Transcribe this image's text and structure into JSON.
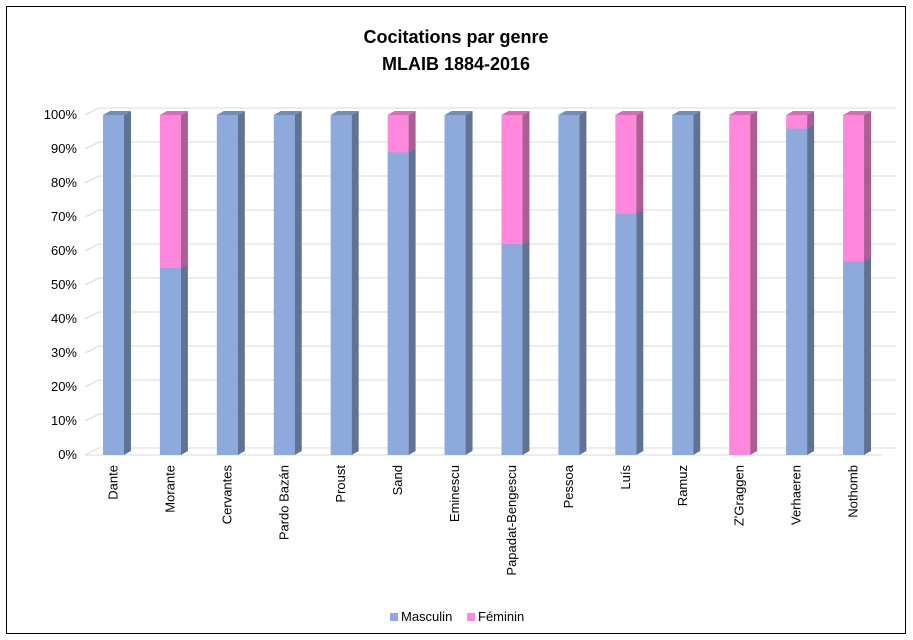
{
  "chart_data": {
    "type": "bar",
    "stacked": true,
    "percent": true,
    "three_d": true,
    "title": "Cocitations par genre",
    "subtitle": "MLAIB 1884-2016",
    "categories": [
      "Dante",
      "Morante",
      "Cervantes",
      "Pardo Bazán",
      "Proust",
      "Sand",
      "Eminescu",
      "Papadat-Bengescu",
      "Pessoa",
      "Luís",
      "Ramuz",
      "Z'Graggen",
      "Verhaeren",
      "Nothomb"
    ],
    "series": [
      {
        "name": "Masculin",
        "color": "#8EA9DB",
        "values": [
          100,
          55,
          100,
          100,
          100,
          89,
          100,
          62,
          100,
          71,
          100,
          0,
          96,
          57
        ]
      },
      {
        "name": "Féminin",
        "color": "#FF88DD",
        "values": [
          0,
          45,
          0,
          0,
          0,
          11,
          0,
          38,
          0,
          29,
          0,
          100,
          4,
          43
        ]
      }
    ],
    "yticks": [
      "0%",
      "10%",
      "20%",
      "30%",
      "40%",
      "50%",
      "60%",
      "70%",
      "80%",
      "90%",
      "100%"
    ],
    "ylim": [
      0,
      100
    ],
    "grid": true,
    "legend": "bottom"
  }
}
